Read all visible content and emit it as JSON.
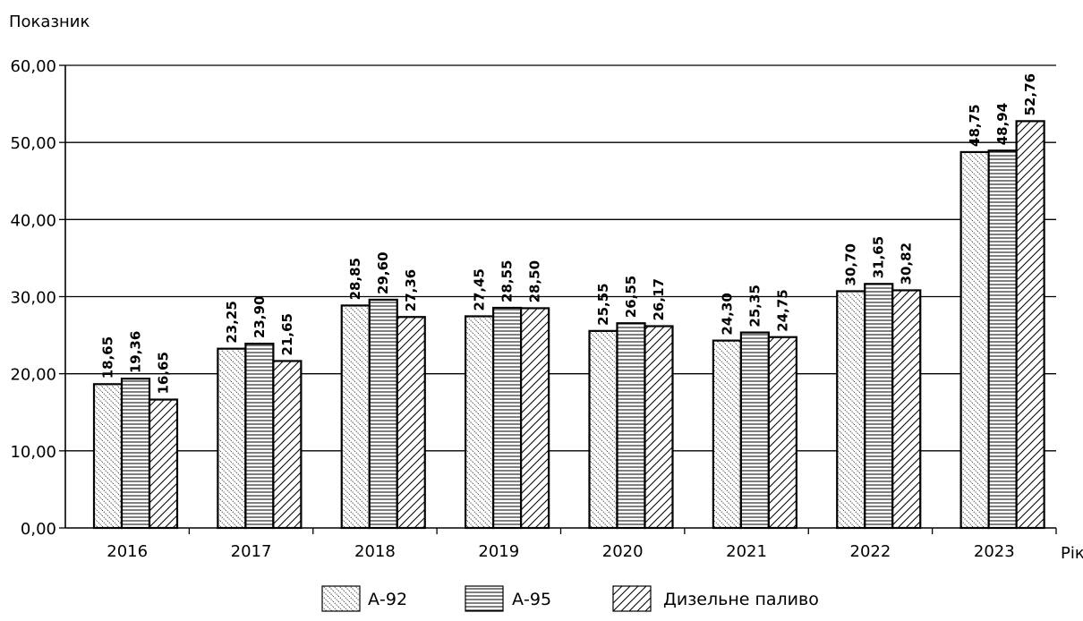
{
  "chart_data": {
    "type": "bar",
    "ylabel": "Показник",
    "xlabel": "Рік",
    "categories": [
      "2016",
      "2017",
      "2018",
      "2019",
      "2020",
      "2021",
      "2022",
      "2023"
    ],
    "series": [
      {
        "name": "А-92",
        "values": [
          18.65,
          23.25,
          28.85,
          27.45,
          25.55,
          24.3,
          30.7,
          48.75
        ],
        "labels": [
          "18,65",
          "23,25",
          "28,85",
          "27,45",
          "25,55",
          "24,30",
          "30,70",
          "48,75"
        ],
        "pattern": "dotted-diagonal"
      },
      {
        "name": "А-95",
        "values": [
          19.36,
          23.9,
          29.6,
          28.55,
          26.55,
          25.35,
          31.65,
          48.94
        ],
        "labels": [
          "19,36",
          "23,90",
          "29,60",
          "28,55",
          "26,55",
          "25,35",
          "31,65",
          "48,94"
        ],
        "pattern": "horizontal-lines"
      },
      {
        "name": "Дизельне паливо",
        "values": [
          16.65,
          21.65,
          27.36,
          28.5,
          26.17,
          24.75,
          30.82,
          52.76
        ],
        "labels": [
          "16,65",
          "21,65",
          "27,36",
          "28,50",
          "26,17",
          "24,75",
          "30,82",
          "52,76"
        ],
        "pattern": "diagonal-lines"
      }
    ],
    "ylim": [
      0,
      60
    ],
    "yticks": [
      "0,00",
      "10,00",
      "20,00",
      "30,00",
      "40,00",
      "50,00",
      "60,00"
    ],
    "grid": "horizontal",
    "legend_position": "bottom",
    "colors": {
      "bar_stroke": "#000000",
      "bar_fill": "#ffffff",
      "grid": "#000000"
    }
  }
}
